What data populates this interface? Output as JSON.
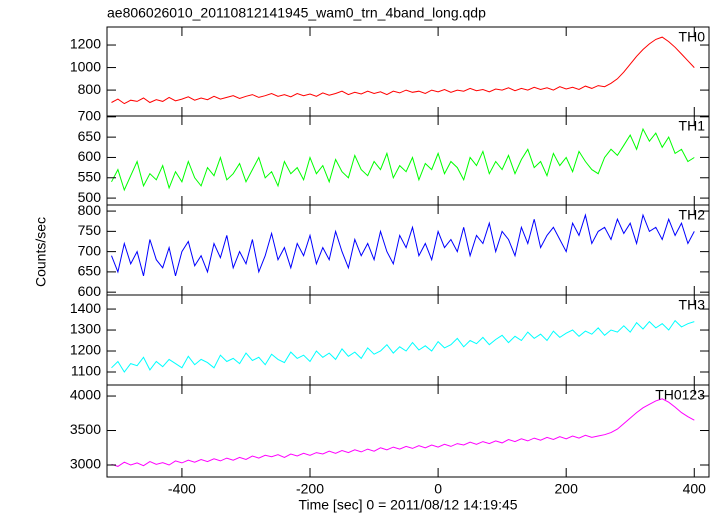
{
  "chart_data": {
    "type": "line",
    "title": "ae806026010_20110812141945_wam0_trn_4band_long.qdp",
    "xlabel": "Time [sec] 0 = 2011/08/12 14:19:45",
    "ylabel": "Counts/sec",
    "xlim": [
      -517,
      423
    ],
    "xticks": [
      -400,
      -200,
      0,
      200,
      400
    ],
    "x": [
      -510,
      -500,
      -490,
      -480,
      -470,
      -460,
      -450,
      -440,
      -430,
      -420,
      -410,
      -400,
      -390,
      -380,
      -370,
      -360,
      -350,
      -340,
      -330,
      -320,
      -310,
      -300,
      -290,
      -280,
      -270,
      -260,
      -250,
      -240,
      -230,
      -220,
      -210,
      -200,
      -190,
      -180,
      -170,
      -160,
      -150,
      -140,
      -130,
      -120,
      -110,
      -100,
      -90,
      -80,
      -70,
      -60,
      -50,
      -40,
      -30,
      -20,
      -10,
      0,
      10,
      20,
      30,
      40,
      50,
      60,
      70,
      80,
      90,
      100,
      110,
      120,
      130,
      140,
      150,
      160,
      170,
      180,
      190,
      200,
      210,
      220,
      230,
      240,
      250,
      260,
      270,
      280,
      290,
      300,
      310,
      320,
      330,
      340,
      350,
      360,
      370,
      380,
      390,
      400
    ],
    "series": [
      {
        "name": "TH0",
        "color": "#ff0000",
        "ylim": [
          570,
          1360
        ],
        "yticks": [
          800,
          1000,
          1200
        ],
        "values": [
          690,
          720,
          680,
          710,
          700,
          730,
          690,
          715,
          700,
          735,
          705,
          720,
          740,
          710,
          730,
          715,
          745,
          720,
          735,
          750,
          725,
          745,
          760,
          735,
          750,
          770,
          745,
          760,
          740,
          770,
          750,
          765,
          745,
          775,
          755,
          770,
          790,
          760,
          780,
          765,
          790,
          770,
          785,
          760,
          790,
          775,
          800,
          780,
          790,
          770,
          800,
          785,
          805,
          780,
          800,
          790,
          815,
          795,
          805,
          785,
          810,
          800,
          820,
          795,
          815,
          800,
          825,
          805,
          820,
          800,
          830,
          810,
          825,
          805,
          835,
          815,
          840,
          830,
          860,
          900,
          960,
          1030,
          1100,
          1160,
          1210,
          1250,
          1270,
          1230,
          1180,
          1120,
          1060,
          1000
        ]
      },
      {
        "name": "TH1",
        "color": "#00ff00",
        "ylim": [
          483,
          702
        ],
        "yticks": [
          500,
          550,
          600,
          650,
          700
        ],
        "values": [
          540,
          570,
          520,
          555,
          590,
          530,
          560,
          545,
          580,
          525,
          565,
          540,
          590,
          550,
          530,
          575,
          555,
          600,
          545,
          560,
          585,
          540,
          570,
          600,
          550,
          565,
          530,
          590,
          560,
          575,
          545,
          600,
          560,
          580,
          540,
          595,
          565,
          550,
          605,
          570,
          555,
          590,
          570,
          610,
          550,
          580,
          565,
          600,
          545,
          585,
          570,
          610,
          560,
          590,
          575,
          545,
          600,
          580,
          615,
          560,
          590,
          570,
          605,
          560,
          595,
          620,
          575,
          590,
          555,
          610,
          580,
          600,
          565,
          615,
          590,
          570,
          560,
          600,
          620,
          605,
          630,
          655,
          620,
          670,
          640,
          660,
          625,
          650,
          610,
          620,
          590,
          600
        ]
      },
      {
        "name": "TH2",
        "color": "#0000ff",
        "ylim": [
          593,
          815
        ],
        "yticks": [
          600,
          650,
          700,
          750,
          800
        ],
        "values": [
          690,
          650,
          720,
          670,
          700,
          640,
          730,
          680,
          660,
          710,
          640,
          700,
          725,
          665,
          690,
          650,
          720,
          685,
          740,
          660,
          700,
          670,
          730,
          650,
          690,
          745,
          680,
          710,
          660,
          720,
          690,
          740,
          670,
          710,
          680,
          750,
          700,
          660,
          730,
          690,
          720,
          680,
          750,
          700,
          670,
          740,
          710,
          760,
          690,
          720,
          680,
          750,
          710,
          730,
          700,
          760,
          690,
          740,
          720,
          770,
          700,
          750,
          730,
          690,
          760,
          720,
          780,
          710,
          740,
          760,
          730,
          700,
          770,
          740,
          790,
          720,
          750,
          760,
          730,
          780,
          745,
          770,
          720,
          790,
          750,
          760,
          730,
          780,
          740,
          770,
          720,
          750
        ]
      },
      {
        "name": "TH3",
        "color": "#00ffff",
        "ylim": [
          1038,
          1467
        ],
        "yticks": [
          1100,
          1200,
          1300,
          1400
        ],
        "values": [
          1120,
          1150,
          1100,
          1140,
          1130,
          1170,
          1110,
          1150,
          1125,
          1160,
          1140,
          1120,
          1175,
          1135,
          1160,
          1145,
          1120,
          1180,
          1150,
          1165,
          1140,
          1190,
          1155,
          1170,
          1135,
          1185,
          1160,
          1145,
          1195,
          1165,
          1180,
          1150,
          1200,
          1170,
          1190,
          1160,
          1210,
          1175,
          1195,
          1165,
          1215,
          1185,
          1200,
          1230,
          1190,
          1220,
          1200,
          1240,
          1205,
          1225,
          1200,
          1245,
          1215,
          1230,
          1260,
          1220,
          1250,
          1235,
          1265,
          1230,
          1255,
          1275,
          1240,
          1270,
          1250,
          1290,
          1260,
          1280,
          1250,
          1295,
          1265,
          1285,
          1300,
          1270,
          1295,
          1280,
          1310,
          1275,
          1300,
          1290,
          1320,
          1290,
          1335,
          1305,
          1340,
          1310,
          1330,
          1300,
          1345,
          1315,
          1330,
          1340
        ]
      },
      {
        "name": "TH0123",
        "color": "#ff00ff",
        "ylim": [
          2826,
          4160
        ],
        "yticks": [
          3000,
          3500,
          4000
        ],
        "values": [
          3010,
          2980,
          3040,
          3000,
          3030,
          2990,
          3050,
          3010,
          3035,
          3000,
          3060,
          3030,
          3070,
          3040,
          3080,
          3050,
          3090,
          3060,
          3100,
          3070,
          3110,
          3080,
          3130,
          3100,
          3140,
          3120,
          3150,
          3110,
          3160,
          3130,
          3170,
          3140,
          3180,
          3160,
          3200,
          3170,
          3210,
          3180,
          3220,
          3190,
          3230,
          3200,
          3250,
          3220,
          3260,
          3230,
          3270,
          3240,
          3280,
          3250,
          3290,
          3260,
          3300,
          3270,
          3310,
          3290,
          3330,
          3300,
          3340,
          3310,
          3350,
          3320,
          3370,
          3340,
          3380,
          3350,
          3390,
          3360,
          3400,
          3370,
          3410,
          3380,
          3420,
          3390,
          3430,
          3400,
          3420,
          3440,
          3470,
          3520,
          3600,
          3680,
          3760,
          3830,
          3880,
          3930,
          3960,
          3910,
          3840,
          3760,
          3700,
          3650
        ]
      }
    ]
  }
}
